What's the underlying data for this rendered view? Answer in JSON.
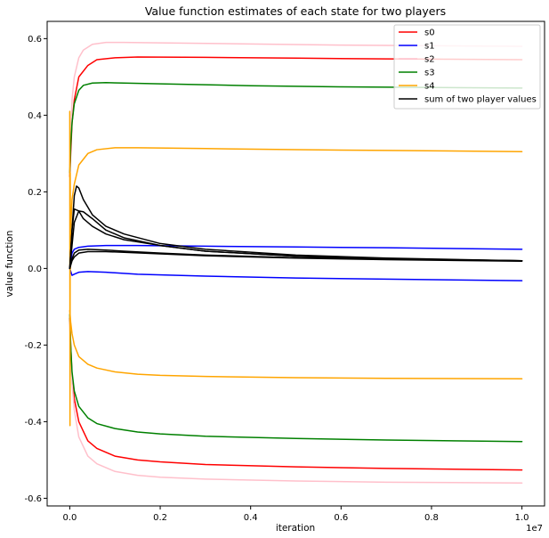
{
  "chart_data": {
    "type": "line",
    "title": "Value function estimates of each state for two players",
    "xlabel": "iteration",
    "ylabel": "value function",
    "x_offset_label": "1e7",
    "xlim": [
      -0.05,
      1.05
    ],
    "ylim": [
      -0.62,
      0.645
    ],
    "x_ticks": [
      0.0,
      0.2,
      0.4,
      0.6,
      0.8,
      1.0
    ],
    "x_tick_labels": [
      "0.0",
      "0.2",
      "0.4",
      "0.6",
      "0.8",
      "1.0"
    ],
    "y_ticks": [
      -0.6,
      -0.4,
      -0.2,
      0.0,
      0.2,
      0.4,
      0.6
    ],
    "y_tick_labels": [
      "-0.6",
      "-0.4",
      "-0.2",
      "0.0",
      "0.2",
      "0.4",
      "0.6"
    ],
    "grid": false,
    "legend_position": "top-right",
    "legend": [
      {
        "label": "s0",
        "color": "#ff0000"
      },
      {
        "label": "s1",
        "color": "#0000ff"
      },
      {
        "label": "s2",
        "color": "#ffc0cb"
      },
      {
        "label": "s3",
        "color": "#008000"
      },
      {
        "label": "s4",
        "color": "#ffa500"
      },
      {
        "label": "sum of two player values",
        "color": "#000000"
      }
    ],
    "series": [
      {
        "name": "s0",
        "color": "#ff0000",
        "x": [
          0,
          0.002,
          0.005,
          0.01,
          0.02,
          0.04,
          0.06,
          0.1,
          0.15,
          0.3,
          0.5,
          0.7,
          1.0
        ],
        "y": [
          0.24,
          0.3,
          0.38,
          0.44,
          0.5,
          0.53,
          0.545,
          0.55,
          0.552,
          0.551,
          0.549,
          0.547,
          0.545
        ]
      },
      {
        "name": "s0",
        "color": "#ff0000",
        "x": [
          0,
          0.002,
          0.005,
          0.01,
          0.02,
          0.04,
          0.06,
          0.1,
          0.15,
          0.2,
          0.3,
          0.5,
          0.7,
          1.0
        ],
        "y": [
          -0.13,
          -0.2,
          -0.28,
          -0.34,
          -0.4,
          -0.45,
          -0.47,
          -0.49,
          -0.5,
          -0.505,
          -0.512,
          -0.518,
          -0.522,
          -0.526
        ]
      },
      {
        "name": "s1",
        "color": "#0000ff",
        "x": [
          0,
          0.005,
          0.01,
          0.02,
          0.04,
          0.08,
          0.15,
          0.3,
          0.5,
          0.7,
          1.0
        ],
        "y": [
          0.0,
          0.04,
          0.05,
          0.055,
          0.058,
          0.06,
          0.06,
          0.058,
          0.056,
          0.054,
          0.05
        ]
      },
      {
        "name": "s1",
        "color": "#0000ff",
        "x": [
          0,
          0.005,
          0.01,
          0.02,
          0.04,
          0.08,
          0.15,
          0.3,
          0.5,
          0.7,
          1.0
        ],
        "y": [
          0.0,
          -0.018,
          -0.015,
          -0.01,
          -0.008,
          -0.01,
          -0.015,
          -0.02,
          -0.025,
          -0.028,
          -0.032
        ]
      },
      {
        "name": "s2",
        "color": "#ffc0cb",
        "x": [
          0,
          0.002,
          0.005,
          0.01,
          0.02,
          0.03,
          0.05,
          0.08,
          0.12,
          0.2,
          0.4,
          0.6,
          1.0
        ],
        "y": [
          0.27,
          0.35,
          0.44,
          0.5,
          0.55,
          0.57,
          0.585,
          0.59,
          0.59,
          0.589,
          0.586,
          0.583,
          0.58
        ]
      },
      {
        "name": "s2",
        "color": "#ffc0cb",
        "x": [
          0,
          0.002,
          0.005,
          0.01,
          0.02,
          0.04,
          0.06,
          0.1,
          0.15,
          0.2,
          0.3,
          0.5,
          0.7,
          1.0
        ],
        "y": [
          -0.14,
          -0.22,
          -0.3,
          -0.37,
          -0.44,
          -0.49,
          -0.51,
          -0.53,
          -0.54,
          -0.545,
          -0.55,
          -0.555,
          -0.558,
          -0.56
        ]
      },
      {
        "name": "s3",
        "color": "#008000",
        "x": [
          0,
          0.002,
          0.005,
          0.01,
          0.02,
          0.03,
          0.05,
          0.08,
          0.12,
          0.2,
          0.4,
          0.6,
          1.0
        ],
        "y": [
          0.25,
          0.32,
          0.38,
          0.43,
          0.465,
          0.478,
          0.484,
          0.485,
          0.484,
          0.482,
          0.477,
          0.474,
          0.471
        ]
      },
      {
        "name": "s3",
        "color": "#008000",
        "x": [
          0,
          0.002,
          0.005,
          0.01,
          0.02,
          0.04,
          0.06,
          0.1,
          0.15,
          0.2,
          0.3,
          0.5,
          0.7,
          1.0
        ],
        "y": [
          -0.12,
          -0.2,
          -0.27,
          -0.32,
          -0.36,
          -0.39,
          -0.405,
          -0.418,
          -0.427,
          -0.432,
          -0.438,
          -0.444,
          -0.448,
          -0.452
        ]
      },
      {
        "name": "s4",
        "color": "#ffa500",
        "x": [
          0,
          0.0005,
          0.001,
          0.0015,
          0.002,
          0.005,
          0.01,
          0.02,
          0.04,
          0.06,
          0.1,
          0.15,
          0.3,
          0.5,
          0.7,
          1.0
        ],
        "y": [
          0.41,
          -0.41,
          0.25,
          0.0,
          0.1,
          0.18,
          0.22,
          0.27,
          0.3,
          0.31,
          0.315,
          0.315,
          0.313,
          0.31,
          0.308,
          0.305
        ]
      },
      {
        "name": "s4",
        "color": "#ffa500",
        "x": [
          0,
          0.002,
          0.005,
          0.01,
          0.02,
          0.04,
          0.06,
          0.1,
          0.15,
          0.2,
          0.3,
          0.5,
          0.7,
          1.0
        ],
        "y": [
          -0.11,
          -0.14,
          -0.17,
          -0.2,
          -0.23,
          -0.25,
          -0.26,
          -0.27,
          -0.276,
          -0.279,
          -0.282,
          -0.285,
          -0.287,
          -0.288
        ]
      },
      {
        "name": "sum of two player values",
        "color": "#000000",
        "x": [
          0,
          0.005,
          0.01,
          0.015,
          0.02,
          0.03,
          0.05,
          0.08,
          0.12,
          0.2,
          0.3,
          0.5,
          0.7,
          1.0
        ],
        "y": [
          0.0,
          0.1,
          0.19,
          0.215,
          0.21,
          0.18,
          0.14,
          0.11,
          0.09,
          0.065,
          0.05,
          0.035,
          0.027,
          0.02
        ]
      },
      {
        "name": "sum of two player values",
        "color": "#000000",
        "x": [
          0,
          0.005,
          0.01,
          0.02,
          0.03,
          0.05,
          0.08,
          0.12,
          0.2,
          0.3,
          0.5,
          0.7,
          1.0
        ],
        "y": [
          0.0,
          0.1,
          0.155,
          0.15,
          0.13,
          0.11,
          0.09,
          0.075,
          0.06,
          0.045,
          0.032,
          0.025,
          0.02
        ]
      },
      {
        "name": "sum of two player values",
        "color": "#000000",
        "x": [
          0,
          0.005,
          0.01,
          0.02,
          0.03,
          0.05,
          0.08,
          0.12,
          0.2,
          0.3,
          0.5,
          0.7,
          1.0
        ],
        "y": [
          0.0,
          0.06,
          0.12,
          0.15,
          0.148,
          0.13,
          0.1,
          0.08,
          0.06,
          0.045,
          0.032,
          0.025,
          0.02
        ]
      },
      {
        "name": "sum of two player values",
        "color": "#000000",
        "x": [
          0,
          0.005,
          0.01,
          0.02,
          0.04,
          0.08,
          0.12,
          0.2,
          0.3,
          0.5,
          0.7,
          1.0
        ],
        "y": [
          0.0,
          0.025,
          0.04,
          0.048,
          0.05,
          0.048,
          0.045,
          0.04,
          0.035,
          0.028,
          0.024,
          0.02
        ]
      },
      {
        "name": "sum of two player values",
        "color": "#000000",
        "x": [
          0,
          0.005,
          0.01,
          0.02,
          0.04,
          0.08,
          0.12,
          0.2,
          0.3,
          0.5,
          0.7,
          1.0
        ],
        "y": [
          0.0,
          0.02,
          0.03,
          0.04,
          0.044,
          0.044,
          0.042,
          0.038,
          0.033,
          0.027,
          0.023,
          0.019
        ]
      }
    ]
  }
}
